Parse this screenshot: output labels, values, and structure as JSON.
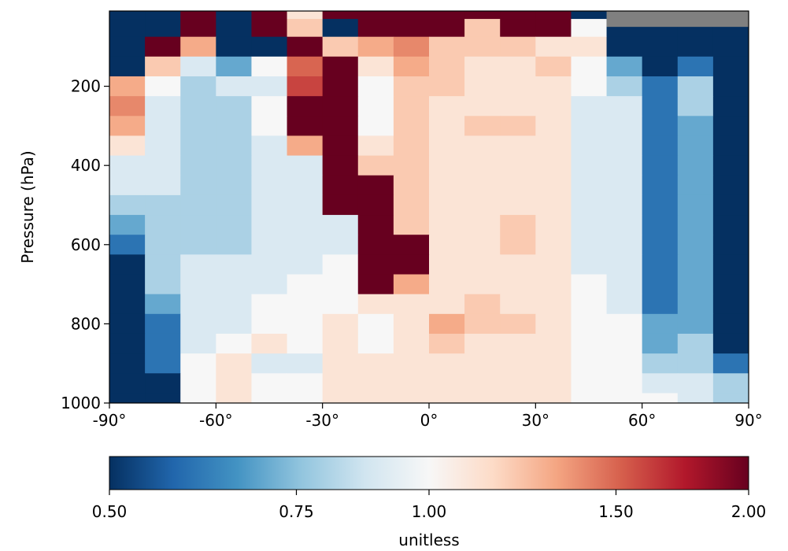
{
  "chart_data": {
    "type": "heatmap",
    "title": "",
    "xlabel": "",
    "ylabel": "Pressure (hPa)",
    "xlim": [
      -90,
      90
    ],
    "ylim": [
      1000,
      10
    ],
    "y_inverted": true,
    "x_ticks": [
      -90,
      -60,
      -30,
      0,
      30,
      60,
      90
    ],
    "x_tick_labels": [
      "-90°",
      "-60°",
      "-30°",
      "0°",
      "30°",
      "60°",
      "90°"
    ],
    "y_ticks": [
      200,
      400,
      600,
      800,
      1000
    ],
    "y_tick_labels": [
      "200",
      "400",
      "600",
      "800",
      "1000"
    ],
    "colormap": "RdBu_r",
    "missing_color": "#808080",
    "colorbar": {
      "label": "unitless",
      "range": [
        0.5,
        2.0
      ],
      "scale": "log",
      "ticks": [
        0.5,
        0.75,
        1.0,
        1.5,
        2.0
      ],
      "tick_labels": [
        "0.50",
        "0.75",
        "1.00",
        "1.50",
        "2.00"
      ],
      "orientation": "horizontal"
    },
    "grid": false,
    "pressure_levels_hPa": [
      10,
      50,
      100,
      150,
      200,
      250,
      300,
      350,
      400,
      450,
      500,
      550,
      600,
      650,
      700,
      750,
      800,
      850,
      900,
      950,
      1000
    ],
    "latitude_bands_deg": [
      -85,
      -75,
      -65,
      -55,
      -45,
      -35,
      -25,
      -15,
      -5,
      5,
      15,
      25,
      35,
      45,
      55,
      65,
      75,
      85
    ],
    "values_by_pressure": [
      [
        0.5,
        0.5,
        2.0,
        0.5,
        2.0,
        1.1,
        2.0,
        2.0,
        2.0,
        2.0,
        2.0,
        2.0,
        2.0,
        0.5,
        0.5,
        0.5,
        0.5,
        0.5
      ],
      [
        0.5,
        0.5,
        2.0,
        0.5,
        2.0,
        1.2,
        0.5,
        2.0,
        2.0,
        2.0,
        1.2,
        2.0,
        2.0,
        1.0,
        0.5,
        0.5,
        0.5,
        0.5
      ],
      [
        0.5,
        2.0,
        1.3,
        0.5,
        0.5,
        2.0,
        1.2,
        1.3,
        1.4,
        1.2,
        1.2,
        1.2,
        1.1,
        1.1,
        0.5,
        0.5,
        0.5,
        0.5
      ],
      [
        0.5,
        1.2,
        0.9,
        0.7,
        1.0,
        1.5,
        2.0,
        1.1,
        1.3,
        1.2,
        1.1,
        1.1,
        1.2,
        1.0,
        0.7,
        0.5,
        0.6,
        0.5
      ],
      [
        1.3,
        1.0,
        0.8,
        0.9,
        0.9,
        1.6,
        2.0,
        1.0,
        1.2,
        1.2,
        1.1,
        1.1,
        1.1,
        1.0,
        0.8,
        0.6,
        0.8,
        0.5
      ],
      [
        1.4,
        0.9,
        0.8,
        0.8,
        1.0,
        2.0,
        2.0,
        1.0,
        1.2,
        1.1,
        1.1,
        1.1,
        1.1,
        0.9,
        0.9,
        0.6,
        0.8,
        0.5
      ],
      [
        1.3,
        0.9,
        0.8,
        0.8,
        1.0,
        2.0,
        2.0,
        1.0,
        1.2,
        1.1,
        1.2,
        1.2,
        1.1,
        0.9,
        0.9,
        0.6,
        0.7,
        0.5
      ],
      [
        1.1,
        0.9,
        0.8,
        0.8,
        0.9,
        1.3,
        2.0,
        1.1,
        1.2,
        1.1,
        1.1,
        1.1,
        1.1,
        0.9,
        0.9,
        0.6,
        0.7,
        0.5
      ],
      [
        0.9,
        0.9,
        0.8,
        0.8,
        0.9,
        0.9,
        2.0,
        1.2,
        1.2,
        1.1,
        1.1,
        1.1,
        1.1,
        0.9,
        0.9,
        0.6,
        0.7,
        0.5
      ],
      [
        0.9,
        0.9,
        0.8,
        0.8,
        0.9,
        0.9,
        2.0,
        2.0,
        1.2,
        1.1,
        1.1,
        1.1,
        1.1,
        0.9,
        0.9,
        0.6,
        0.7,
        0.5
      ],
      [
        0.8,
        0.8,
        0.8,
        0.8,
        0.9,
        0.9,
        2.0,
        2.0,
        1.2,
        1.1,
        1.1,
        1.1,
        1.1,
        0.9,
        0.9,
        0.6,
        0.7,
        0.5
      ],
      [
        0.7,
        0.8,
        0.8,
        0.8,
        0.9,
        0.9,
        0.9,
        2.0,
        1.2,
        1.1,
        1.1,
        1.2,
        1.1,
        0.9,
        0.9,
        0.6,
        0.7,
        0.5
      ],
      [
        0.6,
        0.8,
        0.8,
        0.8,
        0.9,
        0.9,
        0.9,
        2.0,
        2.0,
        1.1,
        1.1,
        1.2,
        1.1,
        0.9,
        0.9,
        0.6,
        0.7,
        0.5
      ],
      [
        0.5,
        0.8,
        0.9,
        0.9,
        0.9,
        0.9,
        1.0,
        2.0,
        2.0,
        1.1,
        1.1,
        1.1,
        1.1,
        0.9,
        0.9,
        0.6,
        0.7,
        0.5
      ],
      [
        0.5,
        0.8,
        0.9,
        0.9,
        0.9,
        1.0,
        1.0,
        2.0,
        1.3,
        1.1,
        1.1,
        1.1,
        1.1,
        1.0,
        0.9,
        0.6,
        0.7,
        0.5
      ],
      [
        0.5,
        0.7,
        0.9,
        0.9,
        1.0,
        1.0,
        1.0,
        1.1,
        1.1,
        1.1,
        1.2,
        1.1,
        1.1,
        1.0,
        0.9,
        0.6,
        0.7,
        0.5
      ],
      [
        0.5,
        0.6,
        0.9,
        0.9,
        1.0,
        1.0,
        1.1,
        1.0,
        1.1,
        1.3,
        1.2,
        1.2,
        1.1,
        1.0,
        1.0,
        0.7,
        0.7,
        0.5
      ],
      [
        0.5,
        0.6,
        0.9,
        1.0,
        1.1,
        1.0,
        1.1,
        1.0,
        1.1,
        1.2,
        1.1,
        1.1,
        1.1,
        1.0,
        1.0,
        0.7,
        0.8,
        0.5
      ],
      [
        0.5,
        0.6,
        1.0,
        1.1,
        0.9,
        0.9,
        1.1,
        1.1,
        1.1,
        1.1,
        1.1,
        1.1,
        1.1,
        1.0,
        1.0,
        0.8,
        0.8,
        0.6
      ],
      [
        0.5,
        0.5,
        1.0,
        1.1,
        1.0,
        1.0,
        1.1,
        1.1,
        1.1,
        1.1,
        1.1,
        1.1,
        1.1,
        1.0,
        1.0,
        0.9,
        0.9,
        0.8
      ],
      [
        0.5,
        0.5,
        1.0,
        1.1,
        1.0,
        1.0,
        1.1,
        1.1,
        1.1,
        1.1,
        1.1,
        1.1,
        1.1,
        1.0,
        1.0,
        1.0,
        0.9,
        0.8
      ]
    ],
    "missing_region": {
      "pressure_below_hPa": 50,
      "latitude_from_deg": 50,
      "note_value": "no data"
    }
  }
}
